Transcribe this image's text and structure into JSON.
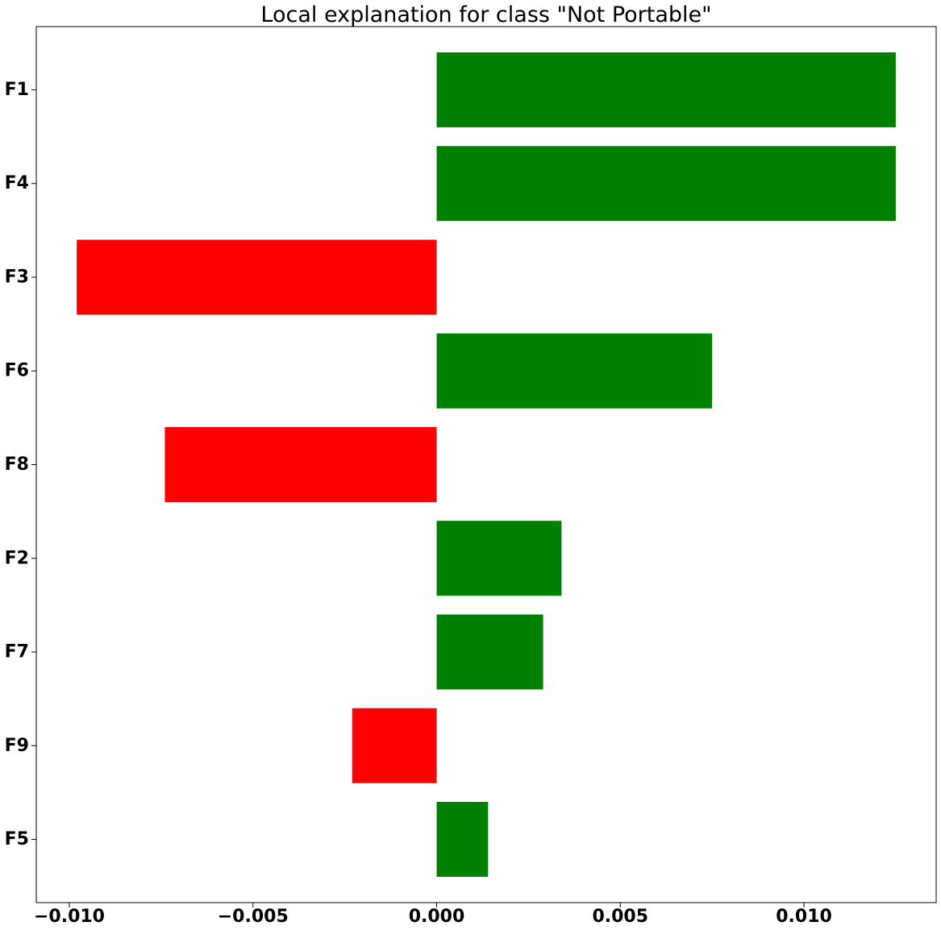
{
  "chart_data": {
    "type": "bar",
    "orientation": "horizontal",
    "title": "Local explanation for class \"Not Portable\"",
    "xlabel": "",
    "ylabel": "",
    "categories": [
      "F1",
      "F4",
      "F3",
      "F6",
      "F8",
      "F2",
      "F7",
      "F9",
      "F5"
    ],
    "values": [
      0.0125,
      0.0125,
      -0.0098,
      0.0075,
      -0.0074,
      0.0034,
      0.0029,
      -0.0023,
      0.0014
    ],
    "xlim": [
      -0.0109,
      0.0136
    ],
    "xticks": [
      -0.01,
      -0.005,
      0.0,
      0.005,
      0.01
    ],
    "xtick_labels": [
      "−0.010",
      "−0.005",
      "0.000",
      "0.005",
      "0.010"
    ],
    "grid": false,
    "legend": "none",
    "colors": {
      "positive": "#008000",
      "negative": "#ff0000",
      "axes": "#000000"
    }
  }
}
